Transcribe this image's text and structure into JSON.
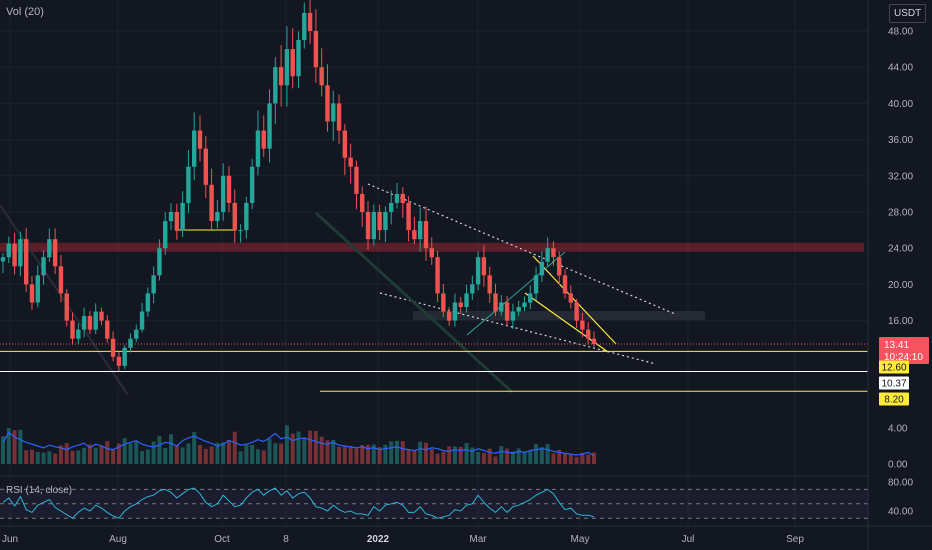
{
  "chart_data": {
    "type": "candlestick",
    "currency": "USDT",
    "price_ticks": [
      48,
      44,
      40,
      36,
      32,
      28,
      24,
      20,
      16
    ],
    "price_tick_labels": [
      "48.00",
      "44.00",
      "40.00",
      "36.00",
      "32.00",
      "28.00",
      "24.00",
      "20.00",
      "16.00"
    ],
    "volume_ticks": [
      4,
      0
    ],
    "volume_tick_labels": [
      "4.00",
      "0.00"
    ],
    "rsi_ticks": [
      80,
      40
    ],
    "rsi_tick_labels": [
      "80.00",
      "40.00"
    ],
    "x_labels": [
      "Jun",
      "Aug",
      "Oct",
      "8",
      "2022",
      "Mar",
      "May",
      "Jul",
      "Sep"
    ],
    "indicators": {
      "volume": "Vol (20)",
      "rsi": "RSI (14, close)"
    },
    "price_labels": [
      {
        "value": 13.41,
        "text": "13.41",
        "bg": "#f7525f",
        "fg": "#ffffff"
      },
      {
        "value": 12.6,
        "text": "12.60",
        "bg": "#ffeb3b",
        "fg": "#131722"
      },
      {
        "value": 10.37,
        "text": "10.37",
        "bg": "#ffffff",
        "fg": "#131722"
      },
      {
        "value": 8.2,
        "text": "8.20",
        "bg": "#ffeb3b",
        "fg": "#131722"
      }
    ],
    "countdown": "10:24:10",
    "horizontal_levels": [
      {
        "value": 12.6,
        "color": "#ffeb3b"
      },
      {
        "value": 10.37,
        "color": "#ffffff"
      },
      {
        "value": 8.2,
        "color": "#ffeb3b"
      }
    ],
    "resistance_zone": {
      "low": 23.6,
      "high": 24.6
    },
    "closes": [
      23,
      24.5,
      22,
      25,
      20,
      18,
      21,
      23,
      25,
      22,
      19,
      16,
      14,
      15,
      16.5,
      15,
      17,
      16,
      14,
      12,
      11,
      13,
      14,
      15,
      17,
      19,
      21,
      24,
      27,
      28,
      26,
      29,
      33,
      37,
      35,
      31,
      27,
      28,
      32,
      29,
      26,
      26,
      29,
      33,
      37,
      35,
      40,
      44,
      42,
      46,
      43,
      47,
      50,
      48,
      44,
      42,
      38,
      40,
      37,
      34,
      33,
      30,
      28,
      25,
      28,
      26,
      28,
      29,
      30,
      29,
      26,
      25,
      27,
      24,
      23,
      19,
      17,
      16,
      18,
      17.5,
      19,
      20,
      23,
      21,
      19,
      17,
      18,
      16,
      17,
      17.5,
      18,
      19,
      21,
      22.5,
      24,
      23,
      21,
      19,
      18,
      16,
      15,
      14,
      13.41
    ],
    "volumes": [
      2.4,
      3.5,
      3.0,
      2.7,
      2.4,
      2.2,
      2.0,
      1.8,
      2.1,
      1.9,
      1.8,
      1.6,
      1.9,
      2.1,
      2.3,
      1.8,
      2.2,
      2.0,
      1.7,
      1.6,
      1.9,
      2.2,
      2.4,
      2.6,
      2.2,
      2.0,
      1.9,
      2.1,
      2.4,
      2.3,
      2.0,
      2.6,
      2.9,
      3.1,
      2.8,
      2.5,
      2.3,
      2.0,
      2.2,
      2.6,
      2.4,
      2.1,
      2.2,
      2.4,
      2.7,
      2.5,
      2.9,
      3.4,
      2.8,
      3.0,
      2.6,
      2.8,
      2.9,
      2.7,
      2.5,
      2.3,
      2.2,
      2.4,
      2.1,
      2.0,
      1.9,
      1.8,
      1.9,
      1.7,
      1.8,
      1.6,
      1.7,
      1.8,
      1.9,
      1.7,
      1.6,
      1.5,
      1.7,
      1.6,
      1.8,
      1.7,
      1.5,
      1.4,
      1.6,
      1.5,
      1.6,
      1.4,
      1.7,
      1.5,
      1.3,
      1.2,
      1.4,
      1.3,
      1.2,
      1.4,
      1.3,
      1.5,
      1.6,
      1.7,
      1.6,
      1.4,
      1.3,
      1.2,
      1.1,
      1.0,
      1.1,
      1.3,
      0.9
    ],
    "rsi": [
      52,
      58,
      47,
      60,
      42,
      38,
      48,
      52,
      56,
      45,
      40,
      35,
      30,
      38,
      44,
      40,
      48,
      44,
      38,
      33,
      30,
      40,
      46,
      50,
      56,
      60,
      62,
      68,
      70,
      66,
      58,
      64,
      70,
      72,
      64,
      52,
      46,
      50,
      62,
      54,
      46,
      48,
      58,
      66,
      70,
      62,
      68,
      72,
      62,
      68,
      58,
      64,
      66,
      58,
      46,
      44,
      40,
      48,
      42,
      38,
      40,
      36,
      36,
      34,
      46,
      40,
      48,
      50,
      52,
      48,
      38,
      38,
      46,
      36,
      34,
      30,
      32,
      34,
      42,
      40,
      48,
      50,
      62,
      52,
      44,
      38,
      46,
      38,
      46,
      48,
      52,
      56,
      62,
      66,
      70,
      64,
      52,
      42,
      44,
      36,
      34,
      34,
      32
    ]
  }
}
